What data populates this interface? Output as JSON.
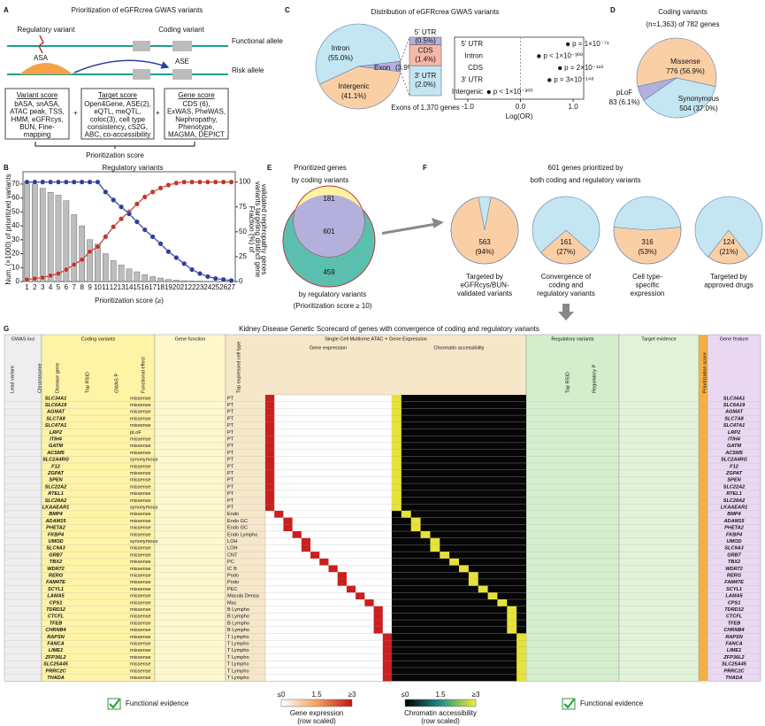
{
  "panel_labels": [
    "A",
    "B",
    "C",
    "D",
    "E",
    "F",
    "G"
  ],
  "diagram": {
    "title": "Prioritization of eGFRcrea GWAS variants",
    "regulatory_variant": "Regulatory variant",
    "coding_variant": "Coding variant",
    "functional_allele": "Functional allele",
    "risk_allele": "Risk allele",
    "asa": "ASA",
    "ase": "ASE",
    "boxes": [
      {
        "heading": "Variant score",
        "lines": [
          "bASA, snASA,",
          "ATAC peak, TSS,",
          "HMM, eGFRcys,",
          "BUN, Fine-",
          "mapping"
        ]
      },
      {
        "heading": "Target score",
        "lines": [
          "Open4Gene, ASE(2),",
          "eQTL, meQTL,",
          "coloc(3), cell type",
          "consistency, cS2G,",
          "ABC, co-accessibility"
        ]
      },
      {
        "heading": "Gene score",
        "lines": [
          "CDS (6),",
          "ExWAS, PheWAS,",
          "Nephropathy,",
          "Phenotype,",
          "MAGMA, DEPICT"
        ]
      }
    ],
    "footer": "Prioritization score"
  },
  "chart_data": [
    {
      "type": "bar",
      "title": "Regulatory variants",
      "categories": [
        "1",
        "2",
        "3",
        "4",
        "5",
        "6",
        "7",
        "8",
        "9",
        "10",
        "11",
        "12",
        "13",
        "14",
        "15",
        "16",
        "17",
        "18",
        "19",
        "20",
        "21",
        "22",
        "23",
        "24",
        "25",
        "26",
        "27"
      ],
      "xlabel": "Prioritization score (≥)",
      "ylabel": "Num. (×1000) of prioritized variants",
      "y2label": "Fraction (%) of",
      "ylim": [
        0,
        75
      ],
      "yticks": [
        0,
        10,
        20,
        30,
        40,
        50,
        60,
        70
      ],
      "y2lim": [
        0,
        105
      ],
      "y2ticks": [
        0,
        25,
        50,
        75,
        100
      ],
      "series": [
        {
          "color": "#bdbdbd",
          "values": [
            72,
            70,
            67,
            64,
            62,
            58,
            48,
            40,
            30,
            27,
            20,
            15,
            12,
            9,
            7,
            5,
            3.5,
            2.5,
            1.5,
            1,
            0.6,
            0.4,
            0.3,
            0.2,
            0.1,
            0.1,
            0.05
          ]
        },
        {
          "name": "variants targeting distinct gene",
          "color": "#c0392b",
          "axis": "y2",
          "values": [
            2,
            3,
            4,
            6,
            8,
            12,
            17,
            22,
            30,
            35,
            45,
            55,
            63,
            70,
            78,
            85,
            90,
            94,
            97,
            99,
            100,
            100,
            100,
            100,
            100,
            100,
            100
          ]
        },
        {
          "name": "validated nephropathy genes",
          "color": "#2c3e9e",
          "axis": "y2",
          "values": [
            100,
            100,
            100,
            100,
            100,
            100,
            100,
            100,
            100,
            100,
            90,
            82,
            75,
            68,
            60,
            52,
            45,
            38,
            30,
            24,
            18,
            12,
            8,
            5,
            3,
            2,
            1
          ]
        }
      ]
    },
    {
      "type": "pie",
      "title": "Distribution of eGFRcrea GWAS variants",
      "categories": [
        "Intron",
        "Intergenic",
        "Exon"
      ],
      "values": [
        55.0,
        41.1,
        3.9
      ],
      "value_labels": [
        "(55.0%)",
        "(41.1%)",
        "(3.9%)"
      ],
      "colors": [
        "#c4e6f3",
        "#fbcfa5",
        "#b4b0dc"
      ]
    },
    {
      "type": "stack",
      "xlabel": "Exons of 1,370 genes",
      "ylim": [
        0,
        3.9
      ],
      "series": [
        {
          "name": "5' UTR",
          "color": "#b4b0dc",
          "values": [
            0.5
          ],
          "value_labels": [
            "(0.5%)"
          ]
        },
        {
          "name": "CDS",
          "color": "#f6b8a8",
          "values": [
            1.4
          ],
          "value_labels": [
            "(1.4%)"
          ]
        },
        {
          "name": "3' UTR",
          "color": "#c4e6f3",
          "values": [
            2.0
          ],
          "value_labels": [
            "(2.0%)"
          ]
        }
      ]
    },
    {
      "type": "dot",
      "categories": [
        "5' UTR",
        "Intron",
        "CDS",
        "3' UTR",
        "Intergenic"
      ],
      "values": [
        0.9,
        0.35,
        0.75,
        0.55,
        -0.6
      ],
      "annotations": [
        "p = 1×10⁻⁷¹",
        "p < 1×10⁻³⁰⁰",
        "p = 2×10⁻¹¹³",
        "p = 3×10⁻¹⁴⁸",
        "p < 1×10⁻³⁰⁰"
      ],
      "xlabel": "Log(OR)",
      "xlim": [
        -1.25,
        1.2
      ],
      "xticks": [
        {
          "value": -1,
          "label": "-1.0"
        },
        {
          "value": 0,
          "label": "0.0"
        },
        {
          "value": 1,
          "label": "1.0"
        }
      ]
    },
    {
      "type": "pie",
      "title": "Coding variants",
      "subtitle": "(n=1,363) of 782 genes",
      "categories": [
        "Missense",
        "Synonymous",
        "pLoF"
      ],
      "values": [
        776,
        504,
        83
      ],
      "value_labels": [
        "776 (56.9%)",
        "504 (37.0%)",
        "83 (6.1%)"
      ],
      "colors": [
        "#fbcfa5",
        "#c4e6f3",
        "#b4b0dc"
      ]
    },
    {
      "type": "venn",
      "title": "Prioritized genes",
      "set_a": "by coding variants",
      "set_b": "by regulatory variants",
      "set_b_note": "(Prioritization score ≥ 10)",
      "values": [
        181,
        601,
        459
      ],
      "colors": [
        "#fdf3a0",
        "#b4b0dc",
        "#5bbfb0"
      ]
    },
    {
      "type": "pies",
      "title": "601 genes prioritized by",
      "subtitle": "both coding and regulatory variants",
      "counts": [
        563,
        161,
        316,
        124
      ],
      "values": [
        94,
        27,
        53,
        21
      ],
      "value_labels": [
        "(94%)",
        "(27%)",
        "(53%)",
        "(21%)"
      ],
      "captions": [
        [
          "Targeted by",
          "eGFRcys/BUN-",
          "validated variants"
        ],
        [
          "Convergence of",
          "coding and",
          "regulatory variants"
        ],
        [
          "Cell type-",
          "specific",
          "expression"
        ],
        [
          "Targeted by",
          "approved drugs"
        ]
      ],
      "colors": [
        "#fbcfa5",
        "#c4e6f3"
      ]
    }
  ],
  "table": {
    "title": "Kidney Disease Genetic Scorecard of genes with convergence of coding and regulatory variants",
    "groups": [
      "GWAS loci",
      "Coding variants",
      "Gene function",
      "Single Cell Multiome ATAC + Gene Expression",
      "Regulatory variants",
      "Target evidence",
      "Gene feature"
    ],
    "subgroups": [
      "Gene expression",
      "Chromatin accessibility"
    ],
    "columns": [
      "Lead variant",
      "Chromosome",
      "Disease gene",
      "Top RSID",
      "GWAS P",
      "Functional effect",
      "Top expressed cell type",
      "Top RSID",
      "Regulatory P",
      "Prioritization score"
    ],
    "rows": [
      {
        "gene": "SLC34A1",
        "cell": "PT",
        "effect": "missense"
      },
      {
        "gene": "SLC6A19",
        "cell": "PT",
        "effect": "missense"
      },
      {
        "gene": "AGMAT",
        "cell": "PT",
        "effect": "missense"
      },
      {
        "gene": "SLC7A8",
        "cell": "PT",
        "effect": "missense"
      },
      {
        "gene": "SLC47A1",
        "cell": "PT",
        "effect": "missense"
      },
      {
        "gene": "LRP2",
        "cell": "PT",
        "effect": "pLoF"
      },
      {
        "gene": "ITIH4",
        "cell": "PT",
        "effect": "missense"
      },
      {
        "gene": "GATM",
        "cell": "PT",
        "effect": "missense"
      },
      {
        "gene": "ACSM5",
        "cell": "PT",
        "effect": "missense"
      },
      {
        "gene": "SLC2A4RG",
        "cell": "PT",
        "effect": "synonymous"
      },
      {
        "gene": "F12",
        "cell": "PT",
        "effect": "missense"
      },
      {
        "gene": "ZGPAT",
        "cell": "PT",
        "effect": "missense"
      },
      {
        "gene": "SPEN",
        "cell": "PT",
        "effect": "missense"
      },
      {
        "gene": "SLC22A2",
        "cell": "PT",
        "effect": "missense"
      },
      {
        "gene": "RTEL1",
        "cell": "PT",
        "effect": "missense"
      },
      {
        "gene": "SLC28A2",
        "cell": "PT",
        "effect": "missense"
      },
      {
        "gene": "LKAAEAR1",
        "cell": "PT",
        "effect": "synonymous"
      },
      {
        "gene": "BMP4",
        "cell": "Endo",
        "effect": "missense"
      },
      {
        "gene": "ADAM15",
        "cell": "Endo GC",
        "effect": "missense"
      },
      {
        "gene": "PHETA2",
        "cell": "Endo GC",
        "effect": "missense"
      },
      {
        "gene": "FKBP4",
        "cell": "Endo Lympho",
        "effect": "missense"
      },
      {
        "gene": "UMOD",
        "cell": "LOH",
        "effect": "synonymous"
      },
      {
        "gene": "SLC9A3",
        "cell": "LOH",
        "effect": "missense"
      },
      {
        "gene": "GRB7",
        "cell": "CNT",
        "effect": "missense"
      },
      {
        "gene": "TBX2",
        "cell": "PC",
        "effect": "missense"
      },
      {
        "gene": "WDR72",
        "cell": "IC B",
        "effect": "missense"
      },
      {
        "gene": "RERG",
        "cell": "Podo",
        "effect": "missense"
      },
      {
        "gene": "FAM47E",
        "cell": "Podo",
        "effect": "missense"
      },
      {
        "gene": "SCYL1",
        "cell": "PEC",
        "effect": "missense"
      },
      {
        "gene": "LAMA5",
        "cell": "Macula Densa",
        "effect": "missense"
      },
      {
        "gene": "CPS1",
        "cell": "Mac",
        "effect": "missense"
      },
      {
        "gene": "TDRD12",
        "cell": "B Lympho",
        "effect": "missense"
      },
      {
        "gene": "CTCFL",
        "cell": "B Lympho",
        "effect": "missense"
      },
      {
        "gene": "TFEB",
        "cell": "B Lympho",
        "effect": "missense"
      },
      {
        "gene": "CHRNB4",
        "cell": "B Lympho",
        "effect": "missense"
      },
      {
        "gene": "RAPSN",
        "cell": "T Lympho",
        "effect": "missense"
      },
      {
        "gene": "FANCA",
        "cell": "T Lympho",
        "effect": "missense"
      },
      {
        "gene": "LIME1",
        "cell": "T Lympho",
        "effect": "missense"
      },
      {
        "gene": "ZFP36L2",
        "cell": "T Lympho",
        "effect": "missense"
      },
      {
        "gene": "SLC25A45",
        "cell": "T Lympho",
        "effect": "missense"
      },
      {
        "gene": "PRRC2C",
        "cell": "T Lympho",
        "effect": "missense"
      },
      {
        "gene": "THADA",
        "cell": "T Lympho",
        "effect": "missense"
      }
    ],
    "legend": {
      "functional": "Functional evidence",
      "expression": "Gene expression",
      "accessibility": "Chromatin accessibility",
      "scaled": "(row scaled)",
      "low": "≤0",
      "mid": "1.5",
      "high": "≥3"
    }
  }
}
